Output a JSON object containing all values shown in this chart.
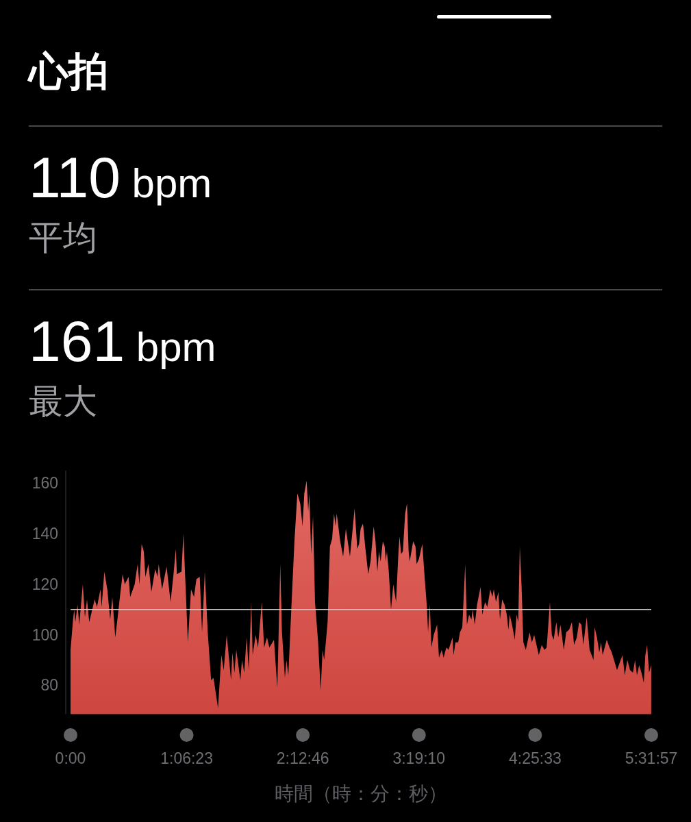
{
  "chart_data": {
    "type": "area",
    "title": "心拍",
    "annotations": [
      "110 bpm",
      "平均",
      "161 bpm",
      "最大"
    ],
    "xlabel": "時間（時：分：秒）",
    "x": [
      0,
      0.024,
      0.035,
      0.046,
      0.067,
      0.083,
      0.117,
      0.137,
      0.157,
      0.178,
      0.23,
      0.252,
      0.285,
      0.296,
      0.322,
      0.35,
      0.378,
      0.398,
      0.426,
      0.452,
      0.47,
      0.496,
      0.517,
      0.553,
      0.568,
      0.611,
      0.639,
      0.657,
      0.677,
      0.698,
      0.713,
      0.742,
      0.77,
      0.807,
      0.829,
      0.84,
      0.872,
      0.915,
      0.953,
      0.981,
      1.003,
      1.013,
      1.057,
      1.075,
      1.09,
      1.118,
      1.148,
      1.176,
      1.199,
      1.231,
      1.253,
      1.279,
      1.307,
      1.339,
      1.362,
      1.405,
      1.437,
      1.459,
      1.488,
      1.529,
      1.542,
      1.561,
      1.579,
      1.618,
      1.633,
      1.655,
      1.677,
      1.698,
      1.722,
      1.735,
      1.764,
      1.786,
      1.822,
      1.844,
      1.872,
      1.894,
      1.938,
      1.97,
      1.998,
      2.014,
      2.042,
      2.057,
      2.075,
      2.105,
      2.133,
      2.161,
      2.188,
      2.21,
      2.227,
      2.249,
      2.264,
      2.275,
      2.292,
      2.31,
      2.329,
      2.357,
      2.383,
      2.401,
      2.416,
      2.432,
      2.449,
      2.471,
      2.492,
      2.51,
      2.525,
      2.536,
      2.569,
      2.597,
      2.623,
      2.662,
      2.688,
      2.706,
      2.732,
      2.749,
      2.764,
      2.786,
      2.807,
      2.836,
      2.858,
      2.888,
      2.905,
      2.923,
      2.938,
      2.954,
      2.975,
      2.993,
      3.003,
      3.014,
      3.032,
      3.053,
      3.075,
      3.101,
      3.123,
      3.134,
      3.149,
      3.166,
      3.188,
      3.205,
      3.221,
      3.231,
      3.264,
      3.286,
      3.297,
      3.319,
      3.351,
      3.373,
      3.395,
      3.406,
      3.423,
      3.438,
      3.46,
      3.492,
      3.51,
      3.536,
      3.554,
      3.58,
      3.601,
      3.639,
      3.649,
      3.667,
      3.693,
      3.71,
      3.732,
      3.76,
      3.776,
      3.797,
      3.819,
      3.83,
      3.851,
      3.873,
      3.906,
      3.923,
      3.949,
      3.971,
      3.999,
      4.019,
      4.032,
      4.053,
      4.076,
      4.091,
      4.112,
      4.134,
      4.156,
      4.171,
      4.184,
      4.206,
      4.232,
      4.249,
      4.265,
      4.28,
      4.297,
      4.314,
      4.337,
      4.373,
      4.395,
      4.417,
      4.461,
      4.489,
      4.515,
      4.536,
      4.567,
      4.585,
      4.602,
      4.628,
      4.646,
      4.667,
      4.699,
      4.722,
      4.75,
      4.776,
      4.797,
      4.823,
      4.845,
      4.867,
      4.885,
      4.917,
      4.945,
      4.982,
      4.993,
      5.015,
      5.037,
      5.054,
      5.069,
      5.108,
      5.135,
      5.156,
      5.185,
      5.206,
      5.232,
      5.258,
      5.28,
      5.304,
      5.33,
      5.358,
      5.378,
      5.396,
      5.417,
      5.439,
      5.461,
      5.476,
      5.493,
      5.511,
      5.532
    ],
    "series": [
      {
        "color": "#dd4b44",
        "values": [
          94,
          106,
          110,
          105,
          112,
          104,
          120,
          107,
          114,
          105,
          114,
          111,
          118,
          111,
          125,
          118,
          106,
          115,
          99,
          108,
          115,
          124,
          120,
          123,
          115,
          120,
          128,
          120,
          136,
          133,
          123,
          128,
          117,
          126,
          123,
          128,
          118,
          127,
          113,
          124,
          134,
          124,
          125,
          140,
          125,
          97,
          118,
          115,
          122,
          123,
          101,
          125,
          101,
          82,
          83,
          71,
          92,
          86,
          100,
          82,
          93,
          85,
          94,
          82,
          90,
          85,
          99,
          86,
          113,
          92,
          100,
          95,
          113,
          95,
          99,
          95,
          98,
          79,
          128,
          101,
          83,
          90,
          84,
          112,
          137,
          156,
          152,
          143,
          156,
          161,
          149,
          156,
          132,
          147,
          113,
          98,
          78,
          94,
          90,
          97,
          105,
          135,
          138,
          148,
          143,
          148,
          137,
          131,
          142,
          131,
          142,
          150,
          134,
          136,
          142,
          144,
          135,
          124,
          129,
          143,
          137,
          125,
          133,
          129,
          137,
          135,
          129,
          133,
          125,
          110,
          120,
          113,
          132,
          139,
          132,
          133,
          148,
          152,
          133,
          129,
          137,
          135,
          128,
          130,
          136,
          123,
          111,
          101,
          112,
          95,
          100,
          104,
          91,
          94,
          91,
          95,
          94,
          99,
          92,
          97,
          97,
          101,
          103,
          128,
          104,
          108,
          106,
          110,
          104,
          112,
          119,
          108,
          113,
          111,
          118,
          115,
          118,
          113,
          117,
          106,
          114,
          112,
          108,
          102,
          108,
          104,
          98,
          108,
          105,
          135,
          119,
          97,
          94,
          101,
          97,
          100,
          92,
          96,
          94,
          95,
          113,
          100,
          98,
          105,
          99,
          104,
          94,
          101,
          102,
          105,
          96,
          99,
          105,
          104,
          96,
          107,
          94,
          90,
          103,
          99,
          93,
          97,
          92,
          98,
          95,
          93,
          89,
          86,
          89,
          92,
          84,
          90,
          86,
          85,
          90,
          84,
          88,
          85,
          81,
          92,
          96,
          85,
          88
        ]
      }
    ],
    "xlim": [
      0,
      5.5325
    ],
    "xticks": [
      {
        "value": 0,
        "label": "0:00"
      },
      {
        "value": 1.1064,
        "label": "1:06:23"
      },
      {
        "value": 2.2128,
        "label": "2:12:46"
      },
      {
        "value": 3.3194,
        "label": "3:19:10"
      },
      {
        "value": 4.4258,
        "label": "4:25:33"
      },
      {
        "value": 5.5325,
        "label": "5:31:57"
      }
    ],
    "ylim": [
      68.6,
      165
    ],
    "yticks": [
      80,
      100,
      120,
      140,
      160
    ],
    "ref_lines": [
      {
        "axis": "y",
        "value": 110,
        "color": "#d0d0d0"
      }
    ]
  }
}
